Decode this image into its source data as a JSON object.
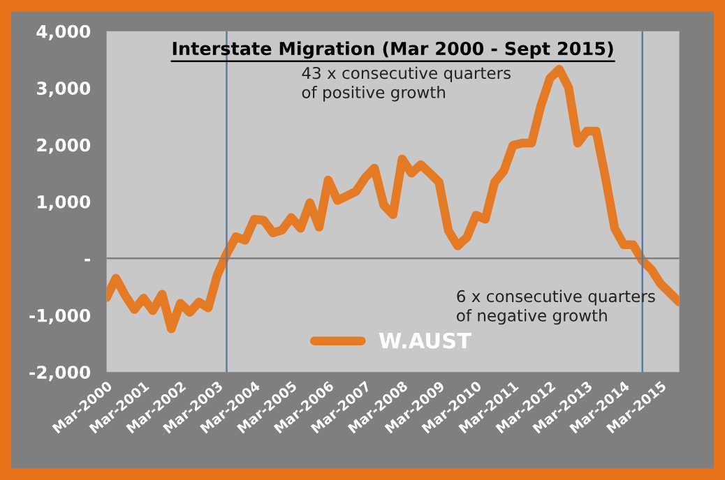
{
  "chart_data": {
    "type": "line",
    "title": "Interstate Migration (Mar 2000 - Sept 2015)",
    "x": [
      "2000-03",
      "2000-06",
      "2000-09",
      "2000-12",
      "2001-03",
      "2001-06",
      "2001-09",
      "2001-12",
      "2002-03",
      "2002-06",
      "2002-09",
      "2002-12",
      "2003-03",
      "2003-06",
      "2003-09",
      "2003-12",
      "2004-03",
      "2004-06",
      "2004-09",
      "2004-12",
      "2005-03",
      "2005-06",
      "2005-09",
      "2005-12",
      "2006-03",
      "2006-06",
      "2006-09",
      "2006-12",
      "2007-03",
      "2007-06",
      "2007-09",
      "2007-12",
      "2008-03",
      "2008-06",
      "2008-09",
      "2008-12",
      "2009-03",
      "2009-06",
      "2009-09",
      "2009-12",
      "2010-03",
      "2010-06",
      "2010-09",
      "2010-12",
      "2011-03",
      "2011-06",
      "2011-09",
      "2011-12",
      "2012-03",
      "2012-06",
      "2012-09",
      "2012-12",
      "2013-03",
      "2013-06",
      "2013-09",
      "2013-12",
      "2014-03",
      "2014-06",
      "2014-09",
      "2014-12",
      "2015-03",
      "2015-06",
      "2015-09"
    ],
    "series": [
      {
        "name": "W.AUST",
        "color": "#e47a24",
        "values": [
          -690,
          -350,
          -650,
          -900,
          -700,
          -920,
          -630,
          -1240,
          -790,
          -950,
          -770,
          -870,
          -290,
          80,
          380,
          320,
          690,
          670,
          450,
          500,
          720,
          530,
          980,
          550,
          1380,
          1020,
          1100,
          1180,
          1420,
          1590,
          940,
          770,
          1750,
          1500,
          1650,
          1500,
          1340,
          490,
          220,
          370,
          760,
          690,
          1340,
          1540,
          1990,
          2030,
          2030,
          2680,
          3170,
          3330,
          3010,
          2030,
          2240,
          2240,
          1420,
          530,
          240,
          240,
          -40,
          -200,
          -450,
          -610,
          -770
        ]
      }
    ],
    "xlim": [
      "2000-03",
      "2015-09"
    ],
    "xticks": [
      {
        "value": "2000-03",
        "label": "Mar-2000"
      },
      {
        "value": "2001-03",
        "label": "Mar-2001"
      },
      {
        "value": "2002-03",
        "label": "Mar-2002"
      },
      {
        "value": "2003-03",
        "label": "Mar-2003"
      },
      {
        "value": "2004-03",
        "label": "Mar-2004"
      },
      {
        "value": "2005-03",
        "label": "Mar-2005"
      },
      {
        "value": "2006-03",
        "label": "Mar-2006"
      },
      {
        "value": "2007-03",
        "label": "Mar-2007"
      },
      {
        "value": "2008-03",
        "label": "Mar-2008"
      },
      {
        "value": "2009-03",
        "label": "Mar-2009"
      },
      {
        "value": "2010-03",
        "label": "Mar-2010"
      },
      {
        "value": "2011-03",
        "label": "Mar-2011"
      },
      {
        "value": "2012-03",
        "label": "Mar-2012"
      },
      {
        "value": "2013-03",
        "label": "Mar-2013"
      },
      {
        "value": "2014-03",
        "label": "Mar-2014"
      },
      {
        "value": "2015-03",
        "label": "Mar-2015"
      }
    ],
    "ylim": [
      -2000,
      4000
    ],
    "yticks": [
      {
        "value": -2000,
        "label": "-2,000"
      },
      {
        "value": -1000,
        "label": "-1,000"
      },
      {
        "value": 0,
        "label": "-"
      },
      {
        "value": 1000,
        "label": "1,000"
      },
      {
        "value": 2000,
        "label": "2,000"
      },
      {
        "value": 3000,
        "label": "3,000"
      },
      {
        "value": 4000,
        "label": "4,000"
      }
    ],
    "ref_lines": [
      {
        "axis": "y",
        "value": 0,
        "color": "#7f7f7f"
      },
      {
        "axis": "x",
        "value": "2003-06",
        "color": "#5a7aa0"
      },
      {
        "axis": "x",
        "value": "2014-09",
        "color": "#5a7aa0"
      }
    ],
    "annotations": [
      "43 x consecutive quarters\nof positive growth",
      "6 x consecutive quarters\nof negative growth"
    ],
    "grid": false,
    "legend": "bottom",
    "marker": "none",
    "line_style": "solid"
  }
}
